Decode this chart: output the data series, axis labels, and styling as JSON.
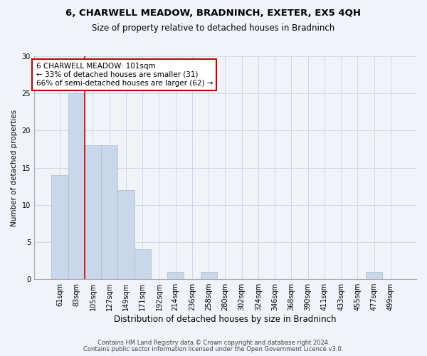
{
  "title": "6, CHARWELL MEADOW, BRADNINCH, EXETER, EX5 4QH",
  "subtitle": "Size of property relative to detached houses in Bradninch",
  "xlabel": "Distribution of detached houses by size in Bradninch",
  "ylabel": "Number of detached properties",
  "categories": [
    "61sqm",
    "83sqm",
    "105sqm",
    "127sqm",
    "149sqm",
    "171sqm",
    "192sqm",
    "214sqm",
    "236sqm",
    "258sqm",
    "280sqm",
    "302sqm",
    "324sqm",
    "346sqm",
    "368sqm",
    "390sqm",
    "411sqm",
    "433sqm",
    "455sqm",
    "477sqm",
    "499sqm"
  ],
  "values": [
    14,
    25,
    18,
    18,
    12,
    4,
    0,
    1,
    0,
    1,
    0,
    0,
    0,
    0,
    0,
    0,
    0,
    0,
    0,
    1,
    0
  ],
  "bar_color": "#c8d8ea",
  "bar_edge_color": "#a8bcd0",
  "vline_color": "#cc0000",
  "annotation_text": "6 CHARWELL MEADOW: 101sqm\n← 33% of detached houses are smaller (31)\n66% of semi-detached houses are larger (62) →",
  "annotation_box_color": "#ffffff",
  "annotation_box_edge": "#cc0000",
  "ylim": [
    0,
    30
  ],
  "yticks": [
    0,
    5,
    10,
    15,
    20,
    25,
    30
  ],
  "grid_color": "#d0d8e8",
  "bg_color": "#f0f4f8",
  "footer1": "Contains HM Land Registry data © Crown copyright and database right 2024.",
  "footer2": "Contains public sector information licensed under the Open Government Licence v3.0."
}
